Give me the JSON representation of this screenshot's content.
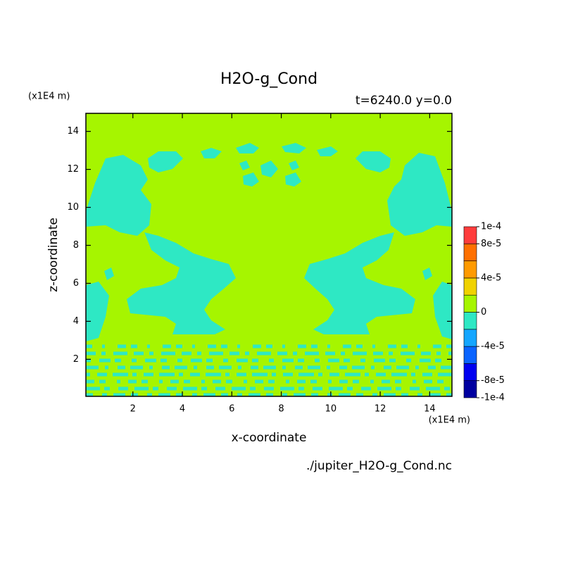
{
  "chart_data": {
    "type": "contour",
    "title": "H2O-g_Cond",
    "subtitle": "t=6240.0 y=0.0",
    "x_label": "x-coordinate",
    "y_label": "z-coordinate",
    "x_unit": "(x1E4 m)",
    "y_unit": "(x1E4 m)",
    "source": "./jupiter_H2O-g_Cond.nc",
    "xlim": [
      0.1,
      14.9
    ],
    "ylim": [
      0.05,
      14.95
    ],
    "xticks": [
      2,
      4,
      6,
      8,
      10,
      12,
      14
    ],
    "yticks": [
      2,
      4,
      6,
      8,
      10,
      12,
      14
    ],
    "colorbar": {
      "levels": [
        -0.0001,
        -8e-05,
        -6e-05,
        -4e-05,
        -2e-05,
        0,
        2e-05,
        4e-05,
        6e-05,
        8e-05,
        0.0001
      ],
      "colors": [
        "#0000a0",
        "#0000f0",
        "#0a64ff",
        "#14a6ff",
        "#2ee8c4",
        "#a6f500",
        "#f0d200",
        "#ff9a00",
        "#ff7000",
        "#ff3c3c"
      ],
      "ticks": [
        {
          "value": 0.0001,
          "label": "1e-4"
        },
        {
          "value": 8e-05,
          "label": "8e-5"
        },
        {
          "value": 4e-05,
          "label": "4e-5"
        },
        0,
        {
          "value": -4e-05,
          "label": "-4e-5"
        },
        {
          "value": -8e-05,
          "label": "-8e-5"
        },
        {
          "value": -0.0001,
          "label": "-1e-4"
        }
      ]
    }
  }
}
